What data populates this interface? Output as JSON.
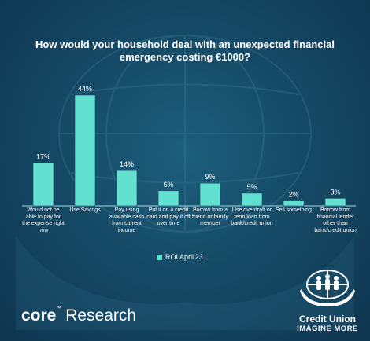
{
  "chart_data": {
    "type": "bar",
    "title": "How would your household deal with an unexpected financial emergency costing €1000?",
    "categories": [
      "Would not be able to pay for the expense right now",
      "Use Savings",
      "Pay using available cash from current income",
      "Put it on a credit card and pay it off over time",
      "Borrow from a friend or family member",
      "Use overdraft or term loan from bank/credit union",
      "Sell something",
      "Borrow from financial lender other than bank/credit union"
    ],
    "series": [
      {
        "name": "ROI April'23",
        "values": [
          17,
          44,
          14,
          6,
          9,
          5,
          2,
          3
        ]
      }
    ],
    "data_labels": [
      "17%",
      "44%",
      "14%",
      "6%",
      "9%",
      "5%",
      "2%",
      "3%"
    ],
    "ylim": [
      0,
      44
    ],
    "grid": false,
    "legend_position": "bottom",
    "bar_color": "#62e0d0"
  },
  "legend": {
    "label": "ROI April'23",
    "color": "#62e0d0"
  },
  "branding": {
    "left_bold": "core",
    "left_tm": "™",
    "left_rest": "Research",
    "right_name": "Credit Union",
    "right_tagline": "IMAGINE MORE"
  }
}
